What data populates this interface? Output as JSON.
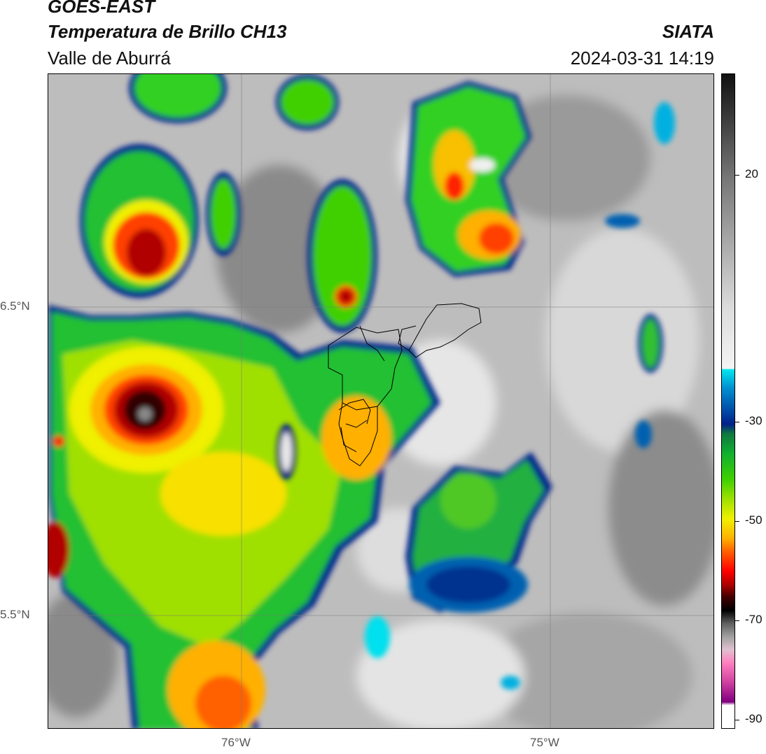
{
  "header": {
    "satellite": "GOES-EAST",
    "product": "Temperatura de Brillo CH13",
    "region": "Valle de Aburrá",
    "brand": "SIATA",
    "datetime": "2024-03-31 14:19"
  },
  "axes": {
    "x_ticks": [
      "76°W",
      "75°W"
    ],
    "y_ticks": [
      "6.5°N",
      "5.5°N"
    ]
  },
  "colorbar": {
    "ticks": [
      "20",
      "-30",
      "-50",
      "-70",
      "-90"
    ],
    "colors": [
      "#111111",
      "#777777",
      "#dddddd",
      "#00e5ee",
      "#00208a",
      "#10b030",
      "#f0f000",
      "#ff6000",
      "#b00000",
      "#000000",
      "#a0a0a0",
      "#ff80c0",
      "#800080"
    ]
  }
}
